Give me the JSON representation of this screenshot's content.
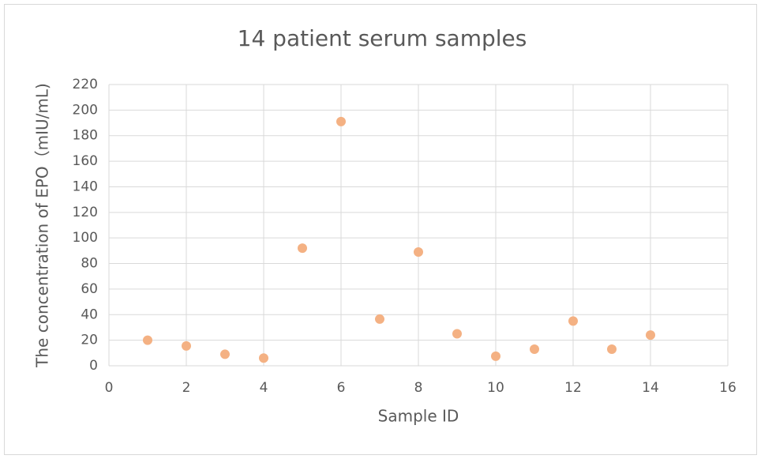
{
  "chart_data": {
    "type": "scatter",
    "title": "14 patient serum samples",
    "x_label": "Sample ID",
    "y_label": "The concentration of EPO（mIU/mL)",
    "x": [
      1,
      2,
      3,
      4,
      5,
      6,
      7,
      8,
      9,
      10,
      11,
      12,
      13,
      14
    ],
    "values": [
      20,
      15.5,
      9,
      6,
      92,
      191,
      36.5,
      89,
      25,
      7.5,
      13,
      35,
      13,
      24
    ],
    "color": "#f4b183",
    "xlim": [
      0,
      16
    ],
    "xticks": [
      0,
      2,
      4,
      6,
      8,
      10,
      12,
      14,
      16
    ],
    "ylim": [
      0,
      220
    ],
    "yticks": [
      0,
      20,
      40,
      60,
      80,
      100,
      120,
      140,
      160,
      180,
      200,
      220
    ],
    "grid": true
  }
}
